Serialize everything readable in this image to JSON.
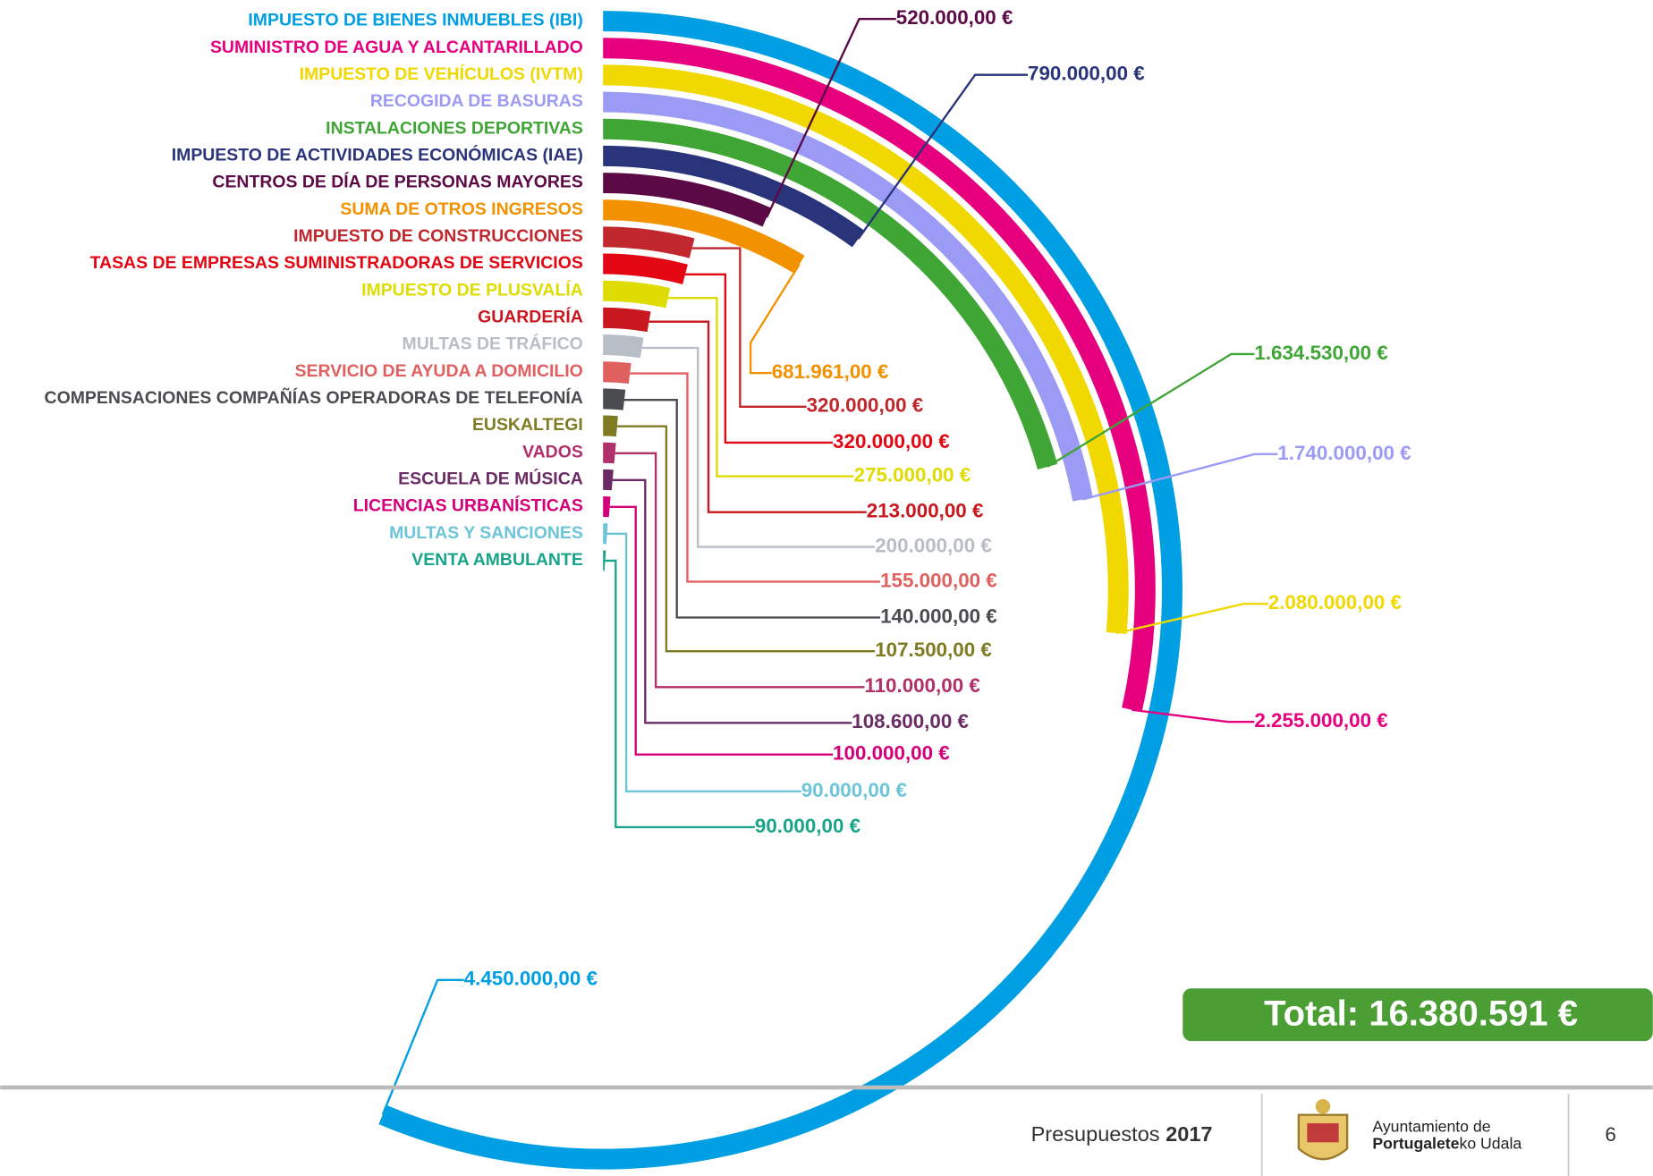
{
  "chart_data": {
    "type": "radial_bar",
    "categories": [
      "IMPUESTO DE BIENES INMUEBLES (IBI)",
      "SUMINISTRO DE AGUA Y ALCANTARILLADO",
      "IMPUESTO DE VEHÍCULOS (IVTM)",
      "RECOGIDA DE BASURAS",
      "INSTALACIONES DEPORTIVAS",
      "IMPUESTO DE ACTIVIDADES ECONÓMICAS (IAE)",
      "CENTROS DE DÍA DE PERSONAS MAYORES",
      "SUMA DE OTROS INGRESOS",
      "IMPUESTO DE CONSTRUCCIONES",
      "TASAS DE  EMPRESAS SUMINISTRADORAS DE SERVICIOS",
      "IMPUESTO DE PLUSVALÍA",
      "GUARDERÍA",
      "MULTAS DE TRÁFICO",
      "SERVICIO DE AYUDA A DOMICILIO",
      "COMPENSACIONES COMPAÑÍAS OPERADORAS DE TELEFONÍA",
      "EUSKALTEGI",
      "VADOS",
      "ESCUELA DE MÚSICA",
      "LICENCIAS URBANÍSTICAS",
      "MULTAS Y SANCIONES",
      "VENTA AMBULANTE"
    ],
    "values": [
      4450000,
      2255000,
      2080000,
      1740000,
      1634530,
      790000,
      520000,
      681961,
      320000,
      320000,
      275000,
      213000,
      200000,
      155000,
      140000,
      107500,
      110000,
      108600,
      100000,
      90000,
      90000
    ],
    "value_labels": [
      "4.450.000,00 €",
      "2.255.000,00 €",
      "2.080.000,00 €",
      "1.740.000,00 €",
      "1.634.530,00 €",
      "790.000,00 €",
      "520.000,00 €",
      "681.961,00 €",
      "320.000,00 €",
      "320.000,00 €",
      "275.000,00 €",
      "213.000,00 €",
      "200.000,00 €",
      "155.000,00 €",
      "140.000,00 €",
      "107.500,00 €",
      "110.000,00 €",
      "108.600,00 €",
      "100.000,00 €",
      "90.000,00 €",
      "90.000,00 €"
    ],
    "colors": [
      "#009fe3",
      "#e6007e",
      "#f0d800",
      "#9b9bf5",
      "#3fa535",
      "#29347a",
      "#5c0a45",
      "#f39200",
      "#c0282d",
      "#e30613",
      "#dedc00",
      "#c8171e",
      "#b8bec5",
      "#e06060",
      "#4a4c50",
      "#7f7b22",
      "#b0306a",
      "#6a2b65",
      "#d4007a",
      "#6cc5d8",
      "#1aa58a"
    ],
    "xlim": [
      0,
      7900000
    ]
  },
  "total": "Total: 16.380.591 €",
  "footer": {
    "presupuestos": "Presupuestos",
    "year": "2017",
    "org_line1": "Ayuntamiento de",
    "org_bold": "Portugalete",
    "org_rest": "ko Udala",
    "page": "6"
  }
}
